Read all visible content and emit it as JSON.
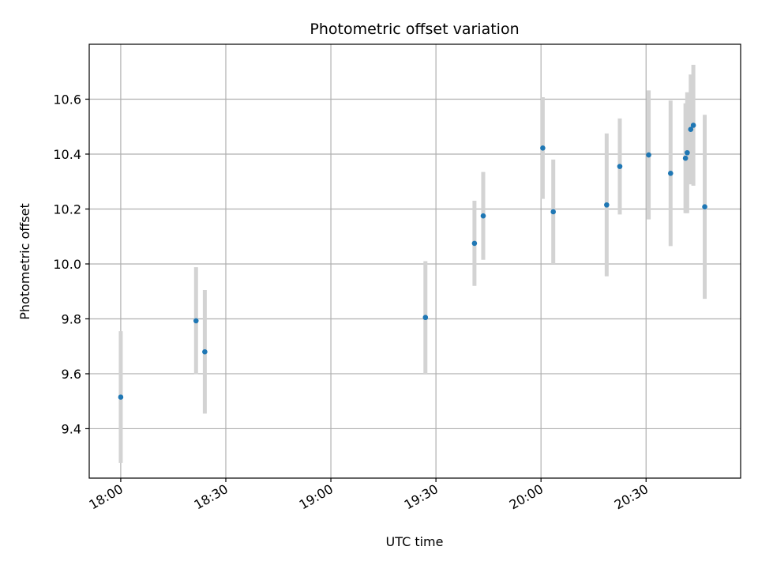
{
  "chart_data": {
    "type": "scatter",
    "title": "Photometric offset variation",
    "xlabel": "UTC time",
    "ylabel": "Photometric offset",
    "x_ticks": [
      "18:00",
      "18:30",
      "19:00",
      "19:30",
      "20:00",
      "20:30"
    ],
    "y_ticks": [
      "9.4",
      "9.6",
      "9.8",
      "10.0",
      "10.2",
      "10.4",
      "10.6"
    ],
    "xlim": [
      "17:51",
      "20:57"
    ],
    "ylim": [
      9.22,
      10.8
    ],
    "grid": true,
    "colors": {
      "point": "#1f77b4",
      "errorbar": "#d3d3d3",
      "grid": "#b0b0b0"
    },
    "points": [
      {
        "x": "18:00:00",
        "y": 9.515,
        "yerr": 0.24
      },
      {
        "x": "18:21:30",
        "y": 9.793,
        "yerr": 0.195
      },
      {
        "x": "18:24:00",
        "y": 9.68,
        "yerr": 0.225
      },
      {
        "x": "19:27:00",
        "y": 9.805,
        "yerr": 0.205
      },
      {
        "x": "19:41:00",
        "y": 10.075,
        "yerr": 0.155
      },
      {
        "x": "19:43:30",
        "y": 10.175,
        "yerr": 0.16
      },
      {
        "x": "20:00:30",
        "y": 10.422,
        "yerr": 0.185
      },
      {
        "x": "20:03:30",
        "y": 10.19,
        "yerr": 0.19
      },
      {
        "x": "20:18:45",
        "y": 10.215,
        "yerr": 0.26
      },
      {
        "x": "20:22:30",
        "y": 10.355,
        "yerr": 0.175
      },
      {
        "x": "20:30:45",
        "y": 10.397,
        "yerr": 0.235
      },
      {
        "x": "20:37:00",
        "y": 10.33,
        "yerr": 0.265
      },
      {
        "x": "20:41:15",
        "y": 10.385,
        "yerr": 0.2
      },
      {
        "x": "20:41:45",
        "y": 10.405,
        "yerr": 0.22
      },
      {
        "x": "20:42:45",
        "y": 10.49,
        "yerr": 0.2
      },
      {
        "x": "20:43:30",
        "y": 10.505,
        "yerr": 0.22
      },
      {
        "x": "20:46:45",
        "y": 10.208,
        "yerr": 0.335
      }
    ]
  }
}
